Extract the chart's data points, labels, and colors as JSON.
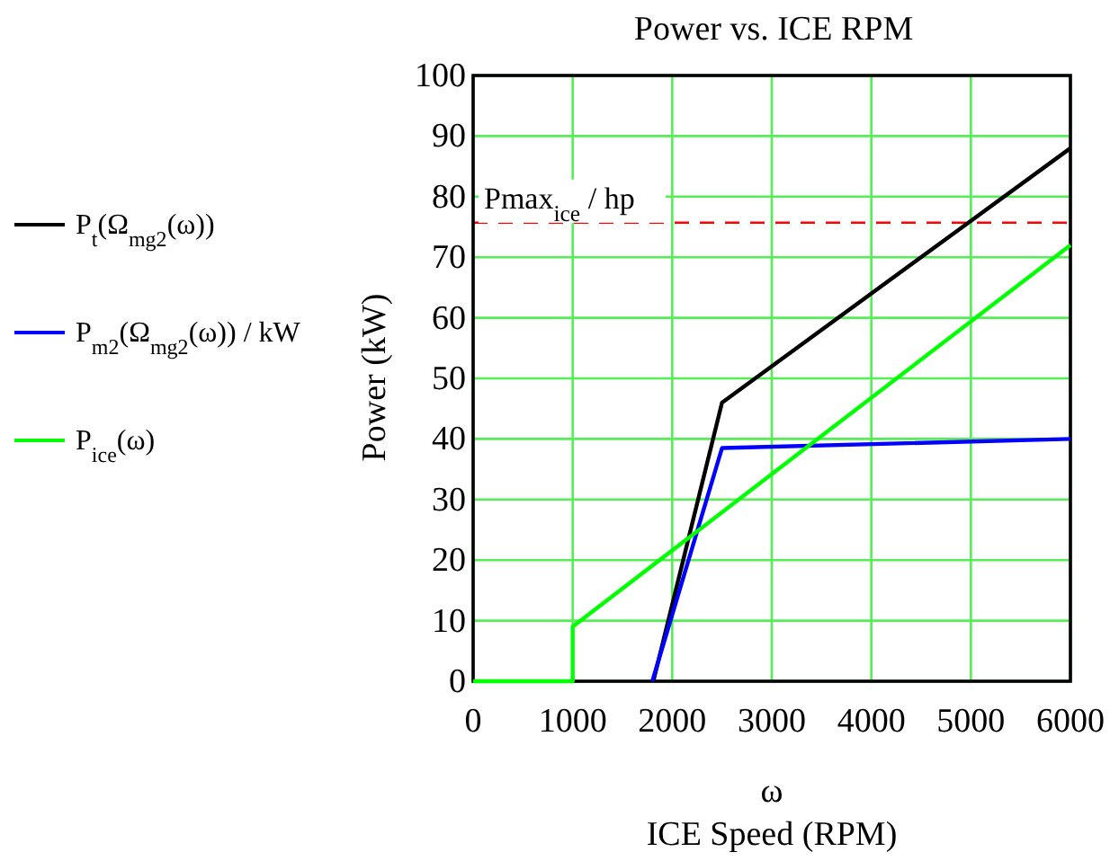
{
  "chart_data": {
    "type": "line",
    "title": "Power  vs. ICE RPM",
    "xlabel": "ω\nICE Speed (RPM)",
    "ylabel": "Power (kW)",
    "xlim": [
      0,
      6000
    ],
    "xticks": [
      0,
      1000,
      2000,
      3000,
      4000,
      5000,
      6000
    ],
    "ylim": [
      0,
      100
    ],
    "yticks": [
      0,
      10,
      20,
      30,
      40,
      50,
      60,
      70,
      80,
      90,
      100
    ],
    "grid": true,
    "legend": "left",
    "line_style": "solid",
    "marker": "none",
    "series": [
      {
        "name": "P$_{t}$(Ω$_{mg2}$(ω))",
        "color": "#000000",
        "x": [
          1810,
          2500,
          6000
        ],
        "values": [
          0,
          46,
          88
        ]
      },
      {
        "name": "P$_{m2}$(Ω$_{mg2}$(ω)) / kW",
        "color": "#0000ff",
        "x": [
          1800,
          2500,
          6000
        ],
        "values": [
          0,
          38.5,
          40
        ]
      },
      {
        "name": "P$_{ice}$(ω)",
        "color": "#00ff00",
        "x": [
          0,
          1000,
          1000,
          6000
        ],
        "values": [
          0,
          0,
          9,
          72
        ]
      }
    ],
    "ref_lines": [
      {
        "axis": "y",
        "value": 75.7,
        "label": "Pmax$_{ice}$ / hp",
        "color": "#ff0000",
        "line_style": "dashed"
      }
    ]
  }
}
